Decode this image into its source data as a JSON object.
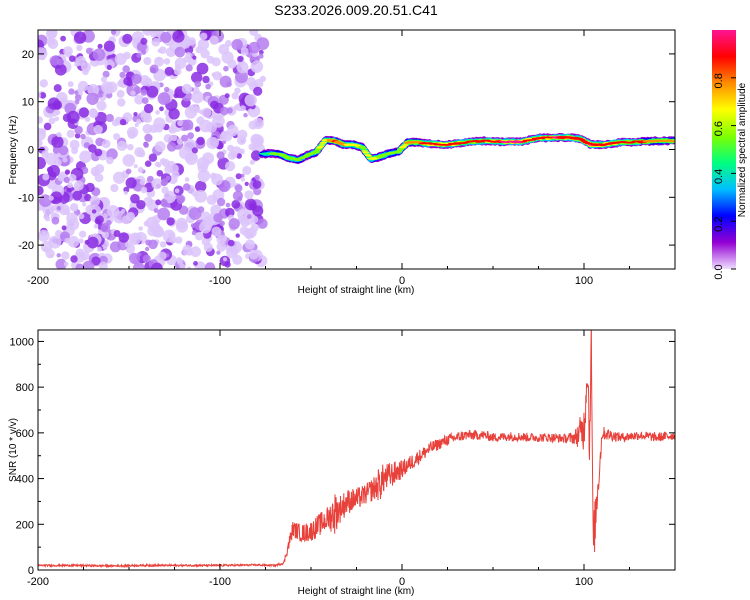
{
  "chart_data": [
    {
      "type": "heatmap",
      "title": "S233.2026.009.20.51.C41",
      "xlabel": "Height of straight line (km)",
      "ylabel": "Frequency (Hz)",
      "xlim": [
        -200,
        150
      ],
      "ylim": [
        -25,
        25
      ],
      "xticks": [
        -200,
        -100,
        0,
        100
      ],
      "yticks": [
        -20,
        -10,
        0,
        10,
        20
      ],
      "noise_region": {
        "x_range": [
          -200,
          -76
        ],
        "y_range": [
          -25,
          25
        ],
        "color": "#8a2be2"
      },
      "signal_ridge": {
        "x": [
          -77,
          -72,
          -67,
          -62,
          -57,
          -52,
          -47,
          -42,
          -37,
          -32,
          -27,
          -22,
          -17,
          -12,
          -7,
          -2,
          3,
          8,
          15,
          25,
          35,
          45,
          55,
          65,
          75,
          85,
          92,
          98,
          104,
          110,
          120,
          130,
          140,
          150
        ],
        "y": [
          -1.0,
          -0.8,
          -1.0,
          -1.8,
          -2.2,
          -1.2,
          -0.5,
          2.0,
          1.8,
          1.0,
          1.0,
          0.5,
          -2.0,
          -1.5,
          -0.8,
          -0.5,
          1.5,
          1.5,
          1.2,
          1.0,
          1.5,
          1.8,
          1.6,
          1.6,
          2.4,
          2.5,
          2.5,
          2.2,
          1.0,
          1.0,
          1.5,
          1.6,
          1.8,
          1.8
        ],
        "amplitude": [
          0.35,
          0.45,
          0.5,
          0.55,
          0.5,
          0.45,
          0.55,
          0.6,
          0.8,
          0.7,
          0.6,
          0.55,
          0.6,
          0.55,
          0.5,
          0.5,
          0.7,
          0.75,
          0.85,
          0.85,
          0.8,
          0.8,
          0.9,
          0.9,
          0.85,
          0.9,
          0.85,
          0.8,
          0.9,
          0.85,
          0.8,
          0.8,
          0.75,
          0.75
        ]
      },
      "colorbar": {
        "label": "Normalized spectral amplitude",
        "range": [
          0,
          1
        ],
        "ticks": [
          "0.0",
          "0.2",
          "0.4",
          "0.6",
          "0.8"
        ],
        "colors": [
          "#f0e0ff",
          "#9400d3",
          "#0000ff",
          "#00bfff",
          "#00ff7f",
          "#7fff00",
          "#ffff00",
          "#ff8c00",
          "#ff0000",
          "#ff1493"
        ]
      }
    },
    {
      "type": "line",
      "xlabel": "Height of straight line (km)",
      "ylabel": "SNR (10 * v/v)",
      "xlim": [
        -200,
        150
      ],
      "ylim": [
        0,
        1050
      ],
      "xticks": [
        -200,
        -100,
        0,
        100
      ],
      "yticks": [
        0,
        200,
        400,
        600,
        800,
        1000
      ],
      "color": "#e8403a",
      "series": [
        {
          "name": "SNR",
          "x": [
            -200,
            -180,
            -160,
            -140,
            -120,
            -100,
            -80,
            -70,
            -65,
            -62,
            -60,
            -55,
            -50,
            -45,
            -40,
            -37,
            -35,
            -30,
            -25,
            -20,
            -15,
            -12,
            -10,
            -5,
            0,
            5,
            10,
            15,
            20,
            25,
            30,
            35,
            40,
            45,
            50,
            60,
            70,
            80,
            90,
            95,
            98,
            100,
            102,
            103,
            104,
            105,
            110,
            120,
            130,
            140,
            150
          ],
          "y": [
            20,
            20,
            18,
            20,
            20,
            20,
            22,
            20,
            30,
            120,
            180,
            160,
            170,
            200,
            230,
            250,
            260,
            300,
            310,
            330,
            360,
            380,
            400,
            420,
            440,
            470,
            500,
            530,
            550,
            570,
            580,
            590,
            590,
            590,
            580,
            585,
            580,
            580,
            575,
            580,
            600,
            620,
            900,
            550,
            1050,
            100,
            600,
            580,
            590,
            580,
            590
          ],
          "noise_amplitude": [
            8,
            8,
            8,
            8,
            8,
            8,
            8,
            8,
            10,
            60,
            70,
            80,
            90,
            100,
            110,
            200,
            130,
            110,
            100,
            90,
            110,
            160,
            130,
            110,
            80,
            70,
            60,
            60,
            50,
            50,
            45,
            45,
            45,
            40,
            40,
            40,
            40,
            40,
            40,
            60,
            150,
            200,
            200,
            300,
            100,
            250,
            60,
            40,
            40,
            40,
            40
          ]
        }
      ]
    }
  ]
}
